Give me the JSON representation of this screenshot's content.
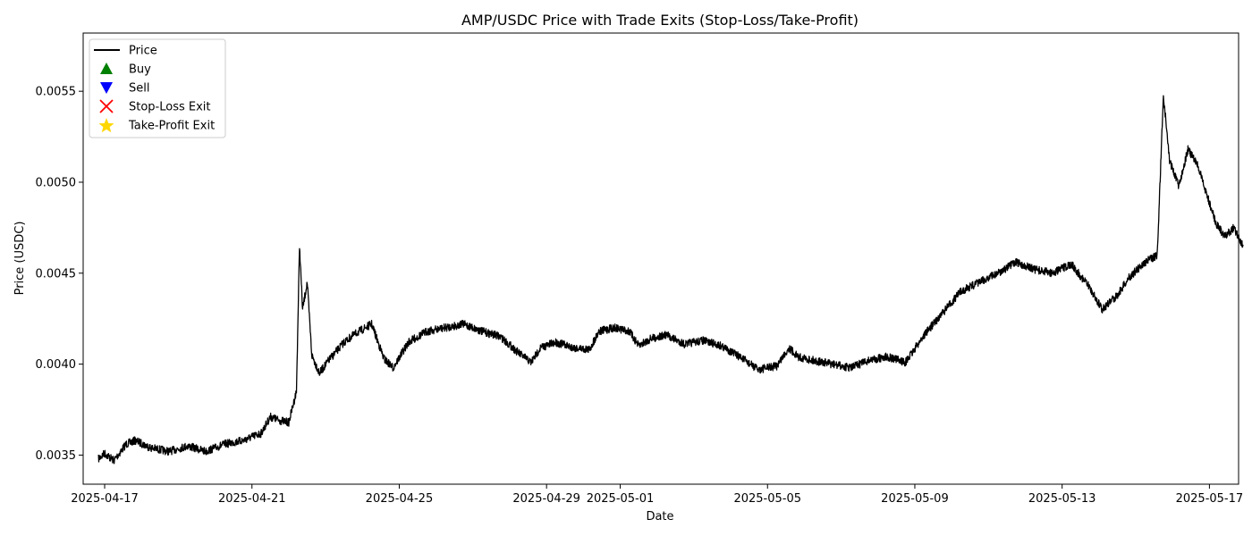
{
  "chart_data": {
    "type": "line",
    "title": "AMP/USDC Price with Trade Exits (Stop-Loss/Take-Profit)",
    "xlabel": "Date",
    "ylabel": "Price (USDC)",
    "xlim": [
      "2025-04-16T10:00",
      "2025-05-17T19:00"
    ],
    "ylim": [
      0.00334,
      0.00582
    ],
    "grid": false,
    "legend_position": "top-left",
    "x_ticks": [
      "2025-04-17",
      "2025-04-21",
      "2025-04-25",
      "2025-04-29",
      "2025-05-01",
      "2025-05-05",
      "2025-05-09",
      "2025-05-13",
      "2025-05-17"
    ],
    "y_ticks": [
      "0.0035",
      "0.0040",
      "0.0045",
      "0.0050",
      "0.0055"
    ],
    "legend": [
      {
        "label": "Price",
        "marker": "line",
        "color": "#000000"
      },
      {
        "label": "Buy",
        "marker": "triangle-up",
        "color": "#008000"
      },
      {
        "label": "Sell",
        "marker": "triangle-down",
        "color": "#0000ff"
      },
      {
        "label": "Stop-Loss Exit",
        "marker": "x",
        "color": "#ff0000"
      },
      {
        "label": "Take-Profit Exit",
        "marker": "star",
        "color": "#ffd700"
      }
    ],
    "series": [
      {
        "name": "Price",
        "color": "#000000",
        "points": [
          [
            "2025-04-16T20:00",
            0.00348
          ],
          [
            "2025-04-17T00:00",
            0.00351
          ],
          [
            "2025-04-17T06:00",
            0.00347
          ],
          [
            "2025-04-17T14:00",
            0.00356
          ],
          [
            "2025-04-17T20:00",
            0.00358
          ],
          [
            "2025-04-18T06:00",
            0.00354
          ],
          [
            "2025-04-18T18:00",
            0.00352
          ],
          [
            "2025-04-19T06:00",
            0.00355
          ],
          [
            "2025-04-19T18:00",
            0.00352
          ],
          [
            "2025-04-20T06:00",
            0.00356
          ],
          [
            "2025-04-20T18:00",
            0.00358
          ],
          [
            "2025-04-21T06:00",
            0.00362
          ],
          [
            "2025-04-21T12:00",
            0.00371
          ],
          [
            "2025-04-21T18:00",
            0.00369
          ],
          [
            "2025-04-22T00:00",
            0.00368
          ],
          [
            "2025-04-22T05:00",
            0.00385
          ],
          [
            "2025-04-22T07:00",
            0.00465
          ],
          [
            "2025-04-22T09:00",
            0.0043
          ],
          [
            "2025-04-22T12:00",
            0.00445
          ],
          [
            "2025-04-22T15:00",
            0.00405
          ],
          [
            "2025-04-22T20:00",
            0.00395
          ],
          [
            "2025-04-23T02:00",
            0.00402
          ],
          [
            "2025-04-23T12:00",
            0.00412
          ],
          [
            "2025-04-23T20:00",
            0.00417
          ],
          [
            "2025-04-24T06:00",
            0.00422
          ],
          [
            "2025-04-24T14:00",
            0.00403
          ],
          [
            "2025-04-24T20:00",
            0.00398
          ],
          [
            "2025-04-25T06:00",
            0.00412
          ],
          [
            "2025-04-25T18:00",
            0.00418
          ],
          [
            "2025-04-26T06:00",
            0.0042
          ],
          [
            "2025-04-26T18:00",
            0.00422
          ],
          [
            "2025-04-27T06:00",
            0.00418
          ],
          [
            "2025-04-27T18:00",
            0.00415
          ],
          [
            "2025-04-28T06:00",
            0.00406
          ],
          [
            "2025-04-28T14:00",
            0.00401
          ],
          [
            "2025-04-28T20:00",
            0.00409
          ],
          [
            "2025-04-29T06:00",
            0.00412
          ],
          [
            "2025-04-29T18:00",
            0.00409
          ],
          [
            "2025-04-30T04:00",
            0.00408
          ],
          [
            "2025-04-30T10:00",
            0.00418
          ],
          [
            "2025-04-30T20:00",
            0.0042
          ],
          [
            "2025-05-01T06:00",
            0.00418
          ],
          [
            "2025-05-01T12:00",
            0.0041
          ],
          [
            "2025-05-01T20:00",
            0.00414
          ],
          [
            "2025-05-02T06:00",
            0.00416
          ],
          [
            "2025-05-02T18:00",
            0.00411
          ],
          [
            "2025-05-03T06:00",
            0.00413
          ],
          [
            "2025-05-03T18:00",
            0.0041
          ],
          [
            "2025-05-04T06:00",
            0.00404
          ],
          [
            "2025-05-04T18:00",
            0.00397
          ],
          [
            "2025-05-05T06:00",
            0.00399
          ],
          [
            "2025-05-05T14:00",
            0.00409
          ],
          [
            "2025-05-05T20:00",
            0.00404
          ],
          [
            "2025-05-06T06:00",
            0.00402
          ],
          [
            "2025-05-06T18:00",
            0.004
          ],
          [
            "2025-05-07T06:00",
            0.00398
          ],
          [
            "2025-05-07T18:00",
            0.00402
          ],
          [
            "2025-05-08T06:00",
            0.00404
          ],
          [
            "2025-05-08T18:00",
            0.00401
          ],
          [
            "2025-05-09T06:00",
            0.00416
          ],
          [
            "2025-05-09T18:00",
            0.00428
          ],
          [
            "2025-05-10T06:00",
            0.0044
          ],
          [
            "2025-05-10T18:00",
            0.00445
          ],
          [
            "2025-05-11T06:00",
            0.0045
          ],
          [
            "2025-05-11T18:00",
            0.00456
          ],
          [
            "2025-05-12T06:00",
            0.00452
          ],
          [
            "2025-05-12T18:00",
            0.0045
          ],
          [
            "2025-05-13T06:00",
            0.00455
          ],
          [
            "2025-05-13T18:00",
            0.00442
          ],
          [
            "2025-05-14T02:00",
            0.0043
          ],
          [
            "2025-05-14T12:00",
            0.00438
          ],
          [
            "2025-05-14T20:00",
            0.00448
          ],
          [
            "2025-05-15T06:00",
            0.00456
          ],
          [
            "2025-05-15T14:00",
            0.0046
          ],
          [
            "2025-05-15T18:00",
            0.00548
          ],
          [
            "2025-05-15T22:00",
            0.00512
          ],
          [
            "2025-05-16T04:00",
            0.00498
          ],
          [
            "2025-05-16T10:00",
            0.00518
          ],
          [
            "2025-05-16T16:00",
            0.0051
          ],
          [
            "2025-05-16T22:00",
            0.00494
          ],
          [
            "2025-05-17T04:00",
            0.00478
          ],
          [
            "2025-05-17T10:00",
            0.0047
          ],
          [
            "2025-05-17T16:00",
            0.00475
          ],
          [
            "2025-05-17T22:00",
            0.00465
          ]
        ]
      }
    ]
  }
}
